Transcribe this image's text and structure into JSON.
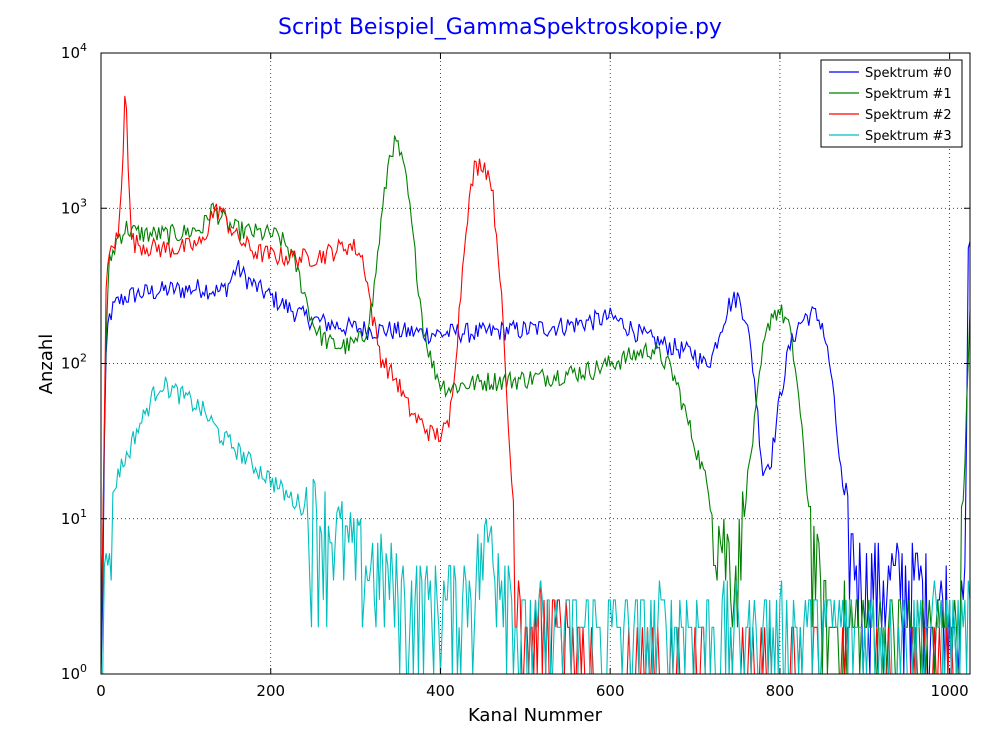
{
  "chart_data": {
    "type": "line",
    "title": "Script Beispiel_GammaSpektroskopie.py",
    "title_color": "#0000ff",
    "xlabel": "Kanal Nummer",
    "ylabel": "Anzahl",
    "xlim": [
      0,
      1024
    ],
    "ylim": [
      1,
      10000
    ],
    "yscale": "log",
    "grid": true,
    "legend_position": "top-right",
    "x_ticks": [
      "0",
      "200",
      "400",
      "600",
      "800",
      "1000"
    ],
    "x_tick_values": [
      0,
      200,
      400,
      600,
      800,
      1000
    ],
    "y_ticks": [
      {
        "value": 1,
        "base": "10",
        "exp": "0"
      },
      {
        "value": 10,
        "base": "10",
        "exp": "1"
      },
      {
        "value": 100,
        "base": "10",
        "exp": "2"
      },
      {
        "value": 1000,
        "base": "10",
        "exp": "3"
      },
      {
        "value": 10000,
        "base": "10",
        "exp": "4"
      }
    ],
    "series": [
      {
        "name": "Spektrum #0",
        "color": "#0000ff",
        "x": [
          0,
          2,
          4,
          6,
          8,
          10,
          15,
          20,
          30,
          40,
          60,
          80,
          100,
          120,
          130,
          140,
          150,
          160,
          170,
          180,
          200,
          220,
          240,
          260,
          280,
          300,
          320,
          340,
          360,
          380,
          400,
          420,
          440,
          460,
          480,
          500,
          520,
          540,
          560,
          580,
          600,
          620,
          640,
          660,
          680,
          700,
          710,
          720,
          730,
          740,
          750,
          760,
          770,
          780,
          790,
          800,
          810,
          820,
          830,
          840,
          850,
          860,
          870,
          880,
          890,
          900,
          920,
          940,
          960,
          980,
          1000,
          1010,
          1018,
          1022,
          1024
        ],
        "y": [
          1,
          5,
          30,
          100,
          170,
          200,
          230,
          250,
          270,
          280,
          290,
          300,
          300,
          310,
          300,
          290,
          320,
          420,
          360,
          320,
          270,
          230,
          200,
          185,
          175,
          170,
          165,
          165,
          160,
          158,
          155,
          160,
          158,
          160,
          165,
          165,
          170,
          175,
          180,
          190,
          200,
          175,
          150,
          135,
          125,
          115,
          100,
          110,
          170,
          240,
          270,
          200,
          80,
          20,
          25,
          60,
          120,
          170,
          200,
          210,
          180,
          90,
          25,
          8,
          5,
          4,
          4,
          4,
          4,
          3,
          3,
          2,
          3,
          500,
          700
        ]
      },
      {
        "name": "Spektrum #1",
        "color": "#008000",
        "x": [
          0,
          3,
          6,
          10,
          20,
          30,
          40,
          60,
          80,
          100,
          120,
          130,
          140,
          150,
          160,
          180,
          200,
          210,
          220,
          230,
          240,
          250,
          260,
          270,
          280,
          290,
          300,
          310,
          320,
          330,
          340,
          345,
          350,
          360,
          370,
          380,
          390,
          400,
          410,
          420,
          440,
          460,
          480,
          500,
          520,
          540,
          560,
          580,
          600,
          620,
          640,
          650,
          660,
          670,
          680,
          690,
          700,
          710,
          720,
          730,
          740,
          750,
          760,
          770,
          780,
          790,
          800,
          810,
          820,
          830,
          840,
          850,
          860,
          870,
          880,
          890,
          900,
          920,
          940,
          960,
          980,
          1000,
          1010,
          1020,
          1024
        ],
        "y": [
          1,
          20,
          150,
          450,
          650,
          750,
          700,
          680,
          680,
          700,
          750,
          1000,
          900,
          780,
          730,
          700,
          680,
          650,
          560,
          420,
          280,
          180,
          150,
          135,
          130,
          130,
          135,
          150,
          250,
          800,
          2200,
          2600,
          2500,
          1500,
          500,
          170,
          100,
          75,
          70,
          72,
          75,
          78,
          78,
          80,
          82,
          85,
          88,
          92,
          100,
          110,
          120,
          125,
          110,
          95,
          70,
          45,
          30,
          20,
          12,
          8,
          6,
          5,
          15,
          40,
          120,
          210,
          220,
          180,
          80,
          20,
          6,
          3,
          2,
          2,
          2,
          2,
          2,
          2,
          2,
          2,
          2,
          2,
          2,
          50,
          200
        ]
      },
      {
        "name": "Spektrum #2",
        "color": "#ff0000",
        "x": [
          0,
          3,
          6,
          10,
          15,
          20,
          25,
          28,
          30,
          33,
          36,
          40,
          50,
          60,
          80,
          100,
          120,
          130,
          140,
          150,
          160,
          180,
          200,
          220,
          240,
          260,
          280,
          290,
          300,
          310,
          320,
          330,
          340,
          350,
          360,
          370,
          380,
          390,
          400,
          410,
          420,
          430,
          440,
          450,
          460,
          470,
          480,
          490,
          500,
          520,
          540,
          560,
          600,
          650,
          700,
          740,
          780,
          820,
          860,
          900,
          940,
          980,
          1024
        ],
        "y": [
          1,
          20,
          300,
          500,
          600,
          650,
          1500,
          6000,
          5000,
          1200,
          650,
          600,
          580,
          560,
          550,
          560,
          600,
          900,
          1000,
          800,
          650,
          530,
          500,
          490,
          480,
          500,
          550,
          580,
          560,
          450,
          200,
          110,
          90,
          75,
          55,
          45,
          40,
          35,
          35,
          40,
          150,
          800,
          1800,
          2000,
          1500,
          400,
          40,
          5,
          2,
          2,
          2,
          1,
          1,
          1,
          1,
          1,
          1,
          1,
          1,
          1,
          1,
          1,
          1
        ]
      },
      {
        "name": "Spektrum #3",
        "color": "#00bfbf",
        "x": [
          0,
          5,
          10,
          15,
          20,
          30,
          40,
          50,
          60,
          70,
          80,
          90,
          100,
          110,
          120,
          130,
          140,
          160,
          180,
          200,
          220,
          240,
          260,
          280,
          300,
          320,
          340,
          360,
          380,
          400,
          420,
          440,
          450,
          460,
          470,
          480,
          490,
          500,
          550,
          600,
          650,
          700,
          750,
          800,
          850,
          900,
          950,
          1000,
          1024
        ],
        "y": [
          1,
          4,
          8,
          15,
          20,
          25,
          35,
          45,
          60,
          75,
          70,
          65,
          60,
          55,
          50,
          42,
          35,
          28,
          22,
          18,
          14,
          12,
          10,
          8,
          6,
          5,
          4,
          3,
          3,
          3,
          3,
          4,
          6,
          8,
          6,
          4,
          2,
          2,
          2,
          2,
          2,
          2,
          2,
          2,
          2,
          2,
          2,
          2,
          2
        ]
      }
    ]
  }
}
